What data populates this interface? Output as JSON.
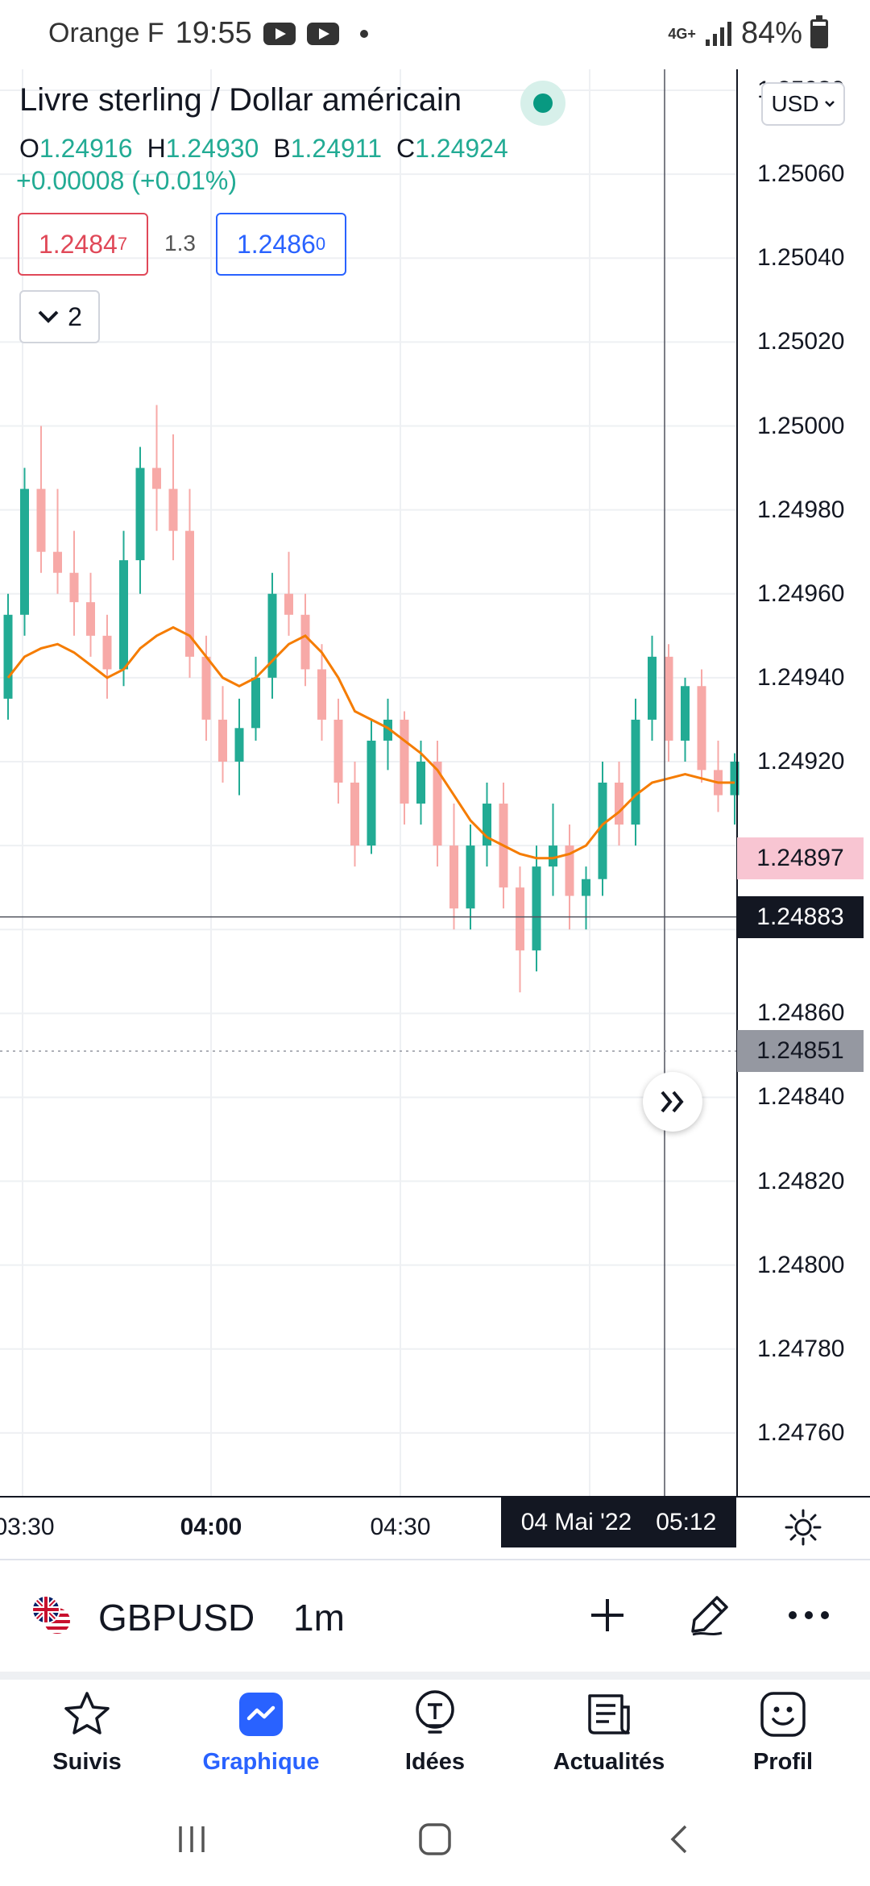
{
  "status_bar": {
    "carrier": "Orange F",
    "time": "19:55",
    "network": "4G+",
    "battery": "84%"
  },
  "legend": {
    "title": "Livre sterling / Dollar américain",
    "open_label": "O",
    "open": "1.24916",
    "high_label": "H",
    "high": "1.24930",
    "low_label": "B",
    "low": "1.24911",
    "close_label": "C",
    "close": "1.24924",
    "change": "+0.00008 (+0.01%)"
  },
  "trade": {
    "bid_main": "1.2484",
    "bid_sup": "7",
    "spread": "1.3",
    "ask_main": "1.2486",
    "ask_sup": "0"
  },
  "indicators_toggle": {
    "count": "2"
  },
  "currency": "USD",
  "price_axis": {
    "ticks": [
      "1.25080",
      "1.25060",
      "1.25040",
      "1.25020",
      "1.25000",
      "1.24980",
      "1.24960",
      "1.24940",
      "1.24920",
      "1.24860",
      "1.24840",
      "1.24820",
      "1.24800",
      "1.24780",
      "1.24760"
    ],
    "last_price": "1.24897",
    "crosshair_price": "1.24883",
    "grey_price": "1.24851"
  },
  "time_axis": {
    "ticks": [
      "03:30",
      "04:00",
      "04:30"
    ],
    "crosshair_date": "04 Mai '22",
    "crosshair_time": "05:12"
  },
  "chart_data": {
    "type": "candlestick",
    "ylim": [
      1.24745,
      1.25085
    ],
    "up_color": "#22ab94",
    "down_color": "#f7a9a7",
    "ma_color": "#f57c00",
    "ohlc": [
      [
        1.24935,
        1.2496,
        1.2493,
        1.24955
      ],
      [
        1.24955,
        1.2499,
        1.2495,
        1.24985
      ],
      [
        1.24985,
        1.25,
        1.24965,
        1.2497
      ],
      [
        1.2497,
        1.24985,
        1.2496,
        1.24965
      ],
      [
        1.24965,
        1.24975,
        1.2495,
        1.24958
      ],
      [
        1.24958,
        1.24965,
        1.24945,
        1.2495
      ],
      [
        1.2495,
        1.24955,
        1.24935,
        1.24942
      ],
      [
        1.24942,
        1.24975,
        1.24938,
        1.24968
      ],
      [
        1.24968,
        1.24995,
        1.2496,
        1.2499
      ],
      [
        1.2499,
        1.25005,
        1.24975,
        1.24985
      ],
      [
        1.24985,
        1.24998,
        1.24968,
        1.24975
      ],
      [
        1.24975,
        1.24985,
        1.2494,
        1.24945
      ],
      [
        1.24945,
        1.2495,
        1.24925,
        1.2493
      ],
      [
        1.2493,
        1.24938,
        1.24915,
        1.2492
      ],
      [
        1.2492,
        1.24935,
        1.24912,
        1.24928
      ],
      [
        1.24928,
        1.24945,
        1.24925,
        1.2494
      ],
      [
        1.2494,
        1.24965,
        1.24935,
        1.2496
      ],
      [
        1.2496,
        1.2497,
        1.2495,
        1.24955
      ],
      [
        1.24955,
        1.2496,
        1.24938,
        1.24942
      ],
      [
        1.24942,
        1.24948,
        1.24925,
        1.2493
      ],
      [
        1.2493,
        1.24935,
        1.2491,
        1.24915
      ],
      [
        1.24915,
        1.2492,
        1.24895,
        1.249
      ],
      [
        1.249,
        1.2493,
        1.24898,
        1.24925
      ],
      [
        1.24925,
        1.24935,
        1.24918,
        1.2493
      ],
      [
        1.2493,
        1.24932,
        1.24905,
        1.2491
      ],
      [
        1.2491,
        1.24925,
        1.24905,
        1.2492
      ],
      [
        1.2492,
        1.24925,
        1.24895,
        1.249
      ],
      [
        1.249,
        1.2491,
        1.2488,
        1.24885
      ],
      [
        1.24885,
        1.24905,
        1.2488,
        1.249
      ],
      [
        1.249,
        1.24915,
        1.24895,
        1.2491
      ],
      [
        1.2491,
        1.24915,
        1.24885,
        1.2489
      ],
      [
        1.2489,
        1.24895,
        1.24865,
        1.24875
      ],
      [
        1.24875,
        1.249,
        1.2487,
        1.24895
      ],
      [
        1.24895,
        1.2491,
        1.24888,
        1.249
      ],
      [
        1.249,
        1.24905,
        1.2488,
        1.24888
      ],
      [
        1.24888,
        1.24895,
        1.2488,
        1.24892
      ],
      [
        1.24892,
        1.2492,
        1.24888,
        1.24915
      ],
      [
        1.24915,
        1.2492,
        1.249,
        1.24905
      ],
      [
        1.24905,
        1.24935,
        1.249,
        1.2493
      ],
      [
        1.2493,
        1.2495,
        1.24925,
        1.24945
      ],
      [
        1.24945,
        1.24948,
        1.2492,
        1.24925
      ],
      [
        1.24925,
        1.2494,
        1.2492,
        1.24938
      ],
      [
        1.24938,
        1.24942,
        1.24915,
        1.24918
      ],
      [
        1.24918,
        1.24925,
        1.24908,
        1.24912
      ],
      [
        1.24912,
        1.24922,
        1.24905,
        1.2492
      ]
    ],
    "ma": [
      1.2494,
      1.24945,
      1.24947,
      1.24948,
      1.24946,
      1.24943,
      1.2494,
      1.24942,
      1.24947,
      1.2495,
      1.24952,
      1.2495,
      1.24945,
      1.2494,
      1.24938,
      1.2494,
      1.24944,
      1.24948,
      1.2495,
      1.24946,
      1.2494,
      1.24932,
      1.2493,
      1.24928,
      1.24925,
      1.24922,
      1.24918,
      1.24912,
      1.24906,
      1.24902,
      1.249,
      1.24898,
      1.24897,
      1.24897,
      1.24898,
      1.249,
      1.24905,
      1.24908,
      1.24912,
      1.24915,
      1.24916,
      1.24917,
      1.24916,
      1.24915,
      1.24915
    ]
  },
  "toolbar": {
    "symbol": "GBPUSD",
    "interval": "1m"
  },
  "nav": {
    "items": [
      {
        "label": "Suivis"
      },
      {
        "label": "Graphique"
      },
      {
        "label": "Idées"
      },
      {
        "label": "Actualités"
      },
      {
        "label": "Profil"
      }
    ]
  }
}
